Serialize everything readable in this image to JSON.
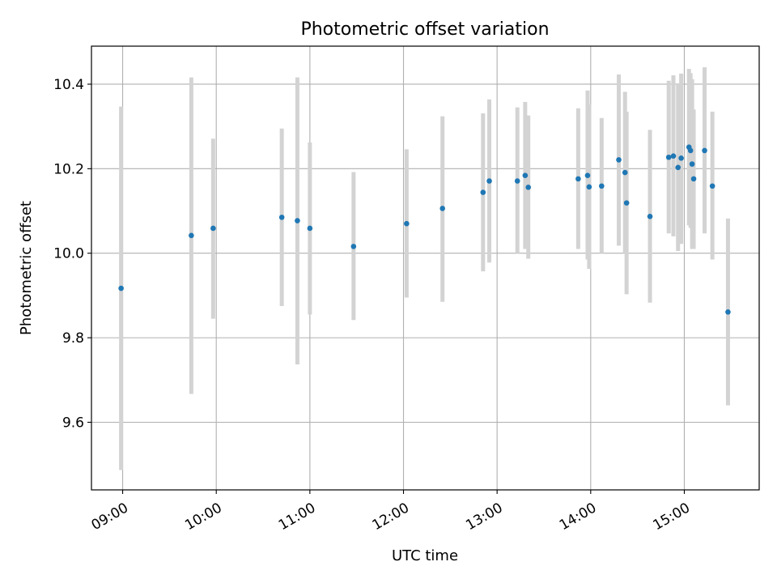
{
  "chart_data": {
    "type": "scatter",
    "title": "Photometric offset variation",
    "xlabel": "UTC time",
    "ylabel": "Photometric offset",
    "x_kind": "time",
    "xlim": [
      "08:40",
      "15:48"
    ],
    "ylim": [
      9.44,
      10.49
    ],
    "x_ticks": [
      "09:00",
      "10:00",
      "11:00",
      "12:00",
      "13:00",
      "14:00",
      "15:00"
    ],
    "y_ticks": [
      9.6,
      9.8,
      10.0,
      10.2,
      10.4
    ],
    "y_tick_labels": [
      "9.6",
      "9.8",
      "10.0",
      "10.2",
      "10.4"
    ],
    "grid": true,
    "marker_color": "#1f77b4",
    "errorbar_color": "#d3d3d3",
    "series": [
      {
        "points": [
          {
            "x": "08:59",
            "y": 9.917,
            "low": 9.487,
            "high": 10.347
          },
          {
            "x": "09:44",
            "y": 10.042,
            "low": 9.667,
            "high": 10.416
          },
          {
            "x": "09:58",
            "y": 10.059,
            "low": 9.845,
            "high": 10.271
          },
          {
            "x": "10:42",
            "y": 10.085,
            "low": 9.875,
            "high": 10.295
          },
          {
            "x": "10:52",
            "y": 10.077,
            "low": 9.737,
            "high": 10.416
          },
          {
            "x": "11:00",
            "y": 10.059,
            "low": 9.855,
            "high": 10.262
          },
          {
            "x": "11:28",
            "y": 10.016,
            "low": 9.842,
            "high": 10.192
          },
          {
            "x": "12:02",
            "y": 10.07,
            "low": 9.895,
            "high": 10.246
          },
          {
            "x": "12:25",
            "y": 10.106,
            "low": 9.885,
            "high": 10.324
          },
          {
            "x": "12:51",
            "y": 10.144,
            "low": 9.957,
            "high": 10.331
          },
          {
            "x": "12:55",
            "y": 10.171,
            "low": 9.978,
            "high": 10.364
          },
          {
            "x": "13:13",
            "y": 10.171,
            "low": 10.0,
            "high": 10.345
          },
          {
            "x": "13:18",
            "y": 10.184,
            "low": 10.01,
            "high": 10.358
          },
          {
            "x": "13:20",
            "y": 10.156,
            "low": 9.987,
            "high": 10.326
          },
          {
            "x": "13:52",
            "y": 10.176,
            "low": 10.01,
            "high": 10.343
          },
          {
            "x": "13:58",
            "y": 10.184,
            "low": 9.985,
            "high": 10.385
          },
          {
            "x": "13:59",
            "y": 10.157,
            "low": 9.963,
            "high": 10.352
          },
          {
            "x": "14:07",
            "y": 10.159,
            "low": 10.0,
            "high": 10.32
          },
          {
            "x": "14:18",
            "y": 10.221,
            "low": 10.018,
            "high": 10.423
          },
          {
            "x": "14:22",
            "y": 10.191,
            "low": 10.0,
            "high": 10.382
          },
          {
            "x": "14:23",
            "y": 10.119,
            "low": 9.903,
            "high": 10.335
          },
          {
            "x": "14:38",
            "y": 10.087,
            "low": 9.883,
            "high": 10.292
          },
          {
            "x": "14:50",
            "y": 10.227,
            "low": 10.047,
            "high": 10.408
          },
          {
            "x": "14:53",
            "y": 10.23,
            "low": 10.04,
            "high": 10.421
          },
          {
            "x": "14:56",
            "y": 10.203,
            "low": 10.005,
            "high": 10.4
          },
          {
            "x": "14:58",
            "y": 10.225,
            "low": 10.022,
            "high": 10.425
          },
          {
            "x": "15:03",
            "y": 10.251,
            "low": 10.066,
            "high": 10.436
          },
          {
            "x": "15:04",
            "y": 10.243,
            "low": 10.06,
            "high": 10.426
          },
          {
            "x": "15:05",
            "y": 10.211,
            "low": 10.01,
            "high": 10.412
          },
          {
            "x": "15:06",
            "y": 10.176,
            "low": 10.01,
            "high": 10.34
          },
          {
            "x": "15:13",
            "y": 10.243,
            "low": 10.047,
            "high": 10.44
          },
          {
            "x": "15:18",
            "y": 10.159,
            "low": 9.985,
            "high": 10.335
          },
          {
            "x": "15:28",
            "y": 9.861,
            "low": 9.64,
            "high": 10.082
          }
        ]
      }
    ]
  }
}
